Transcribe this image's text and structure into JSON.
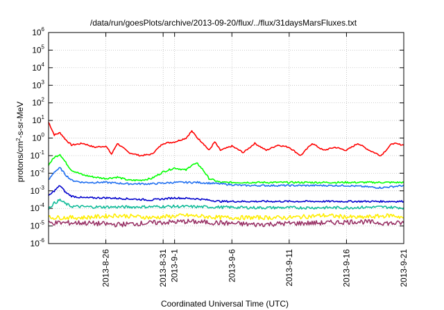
{
  "chart_data": {
    "type": "line",
    "title": "/data/run/goesPlots/archive/2013-09-20/flux/../flux/31daysMarsFluxes.txt",
    "xlabel": "Coordinated Universal Time (UTC)",
    "ylabel": {
      "base": "protons/cm",
      "sup": "2",
      "rest": "-s-sr-MeV"
    },
    "yscale": "log",
    "ylim": [
      1e-06,
      1000000.0
    ],
    "xlim": [
      "2013-08-21",
      "2013-09-21"
    ],
    "grid": true,
    "y_ticks": [
      {
        "value": 1e-06,
        "base": "10",
        "exp": "-6"
      },
      {
        "value": 1e-05,
        "base": "10",
        "exp": "-5"
      },
      {
        "value": 0.0001,
        "base": "10",
        "exp": "-4"
      },
      {
        "value": 0.001,
        "base": "10",
        "exp": "-3"
      },
      {
        "value": 0.01,
        "base": "10",
        "exp": "-2"
      },
      {
        "value": 0.1,
        "base": "10",
        "exp": "-1"
      },
      {
        "value": 1,
        "base": "10",
        "exp": "0"
      },
      {
        "value": 10.0,
        "base": "10",
        "exp": "1"
      },
      {
        "value": 100.0,
        "base": "10",
        "exp": "2"
      },
      {
        "value": 1000.0,
        "base": "10",
        "exp": "3"
      },
      {
        "value": 10000.0,
        "base": "10",
        "exp": "4"
      },
      {
        "value": 100000.0,
        "base": "10",
        "exp": "5"
      },
      {
        "value": 1000000.0,
        "base": "10",
        "exp": "6"
      }
    ],
    "x_ticks": [
      {
        "date": "2013-08-26",
        "label": "2013-8-26"
      },
      {
        "date": "2013-08-31",
        "label": "2013-8-31"
      },
      {
        "date": "2013-09-01",
        "label": "2013-9-1"
      },
      {
        "date": "2013-09-06",
        "label": "2013-9-6"
      },
      {
        "date": "2013-09-11",
        "label": "2013-9-11"
      },
      {
        "date": "2013-09-16",
        "label": "2013-9-16"
      },
      {
        "date": "2013-09-21",
        "label": "2013-9-21"
      }
    ],
    "series": [
      {
        "color": "#ff0000",
        "x": [
          "2013-08-21",
          "2013-08-21T12:00",
          "2013-08-22",
          "2013-08-22T12:00",
          "2013-08-23",
          "2013-08-24",
          "2013-08-25",
          "2013-08-26",
          "2013-08-26T12:00",
          "2013-08-27",
          "2013-08-28",
          "2013-08-29",
          "2013-08-30",
          "2013-08-31",
          "2013-09-01",
          "2013-09-02",
          "2013-09-02T12:00",
          "2013-09-03",
          "2013-09-03T12:00",
          "2013-09-04",
          "2013-09-04T12:00",
          "2013-09-05",
          "2013-09-06",
          "2013-09-07",
          "2013-09-08",
          "2013-09-09",
          "2013-09-10",
          "2013-09-11",
          "2013-09-12",
          "2013-09-13",
          "2013-09-14",
          "2013-09-15",
          "2013-09-16",
          "2013-09-17",
          "2013-09-18",
          "2013-09-19",
          "2013-09-20",
          "2013-09-21"
        ],
        "y": [
          8,
          1.5,
          2,
          0.8,
          0.4,
          0.5,
          0.3,
          0.35,
          0.12,
          0.5,
          0.15,
          0.1,
          0.12,
          0.5,
          0.6,
          1,
          2.5,
          1,
          0.5,
          0.2,
          0.6,
          0.2,
          0.35,
          0.15,
          0.5,
          0.2,
          0.4,
          0.3,
          0.1,
          0.5,
          0.2,
          0.3,
          0.2,
          0.5,
          0.2,
          0.1,
          0.5,
          0.4
        ]
      },
      {
        "color": "#00ff00",
        "x": [
          "2013-08-21",
          "2013-08-21T12:00",
          "2013-08-22",
          "2013-08-22T12:00",
          "2013-08-23",
          "2013-08-24",
          "2013-08-25",
          "2013-08-26",
          "2013-08-27",
          "2013-08-28",
          "2013-08-29",
          "2013-08-30",
          "2013-08-31",
          "2013-09-01",
          "2013-09-02",
          "2013-09-02T12:00",
          "2013-09-03",
          "2013-09-03T12:00",
          "2013-09-04",
          "2013-09-05",
          "2013-09-06",
          "2013-09-08",
          "2013-09-10",
          "2013-09-12",
          "2013-09-14",
          "2013-09-16",
          "2013-09-18",
          "2013-09-20",
          "2013-09-21"
        ],
        "y": [
          0.03,
          0.08,
          0.12,
          0.04,
          0.015,
          0.008,
          0.006,
          0.005,
          0.006,
          0.004,
          0.004,
          0.005,
          0.012,
          0.02,
          0.015,
          0.03,
          0.035,
          0.015,
          0.005,
          0.003,
          0.003,
          0.003,
          0.003,
          0.003,
          0.003,
          0.003,
          0.003,
          0.003,
          0.003
        ]
      },
      {
        "color": "#1e6ef0",
        "x": [
          "2013-08-21",
          "2013-08-21T12:00",
          "2013-08-22",
          "2013-08-22T12:00",
          "2013-08-23",
          "2013-08-24",
          "2013-08-25",
          "2013-08-26",
          "2013-08-28",
          "2013-08-30",
          "2013-09-01",
          "2013-09-03",
          "2013-09-05",
          "2013-09-07",
          "2013-09-10",
          "2013-09-13",
          "2013-09-16",
          "2013-09-19",
          "2013-09-21"
        ],
        "y": [
          0.004,
          0.012,
          0.02,
          0.008,
          0.004,
          0.003,
          0.003,
          0.003,
          0.0025,
          0.0025,
          0.003,
          0.003,
          0.0025,
          0.002,
          0.002,
          0.002,
          0.002,
          0.0015,
          0.002
        ]
      },
      {
        "color": "#0000cc",
        "x": [
          "2013-08-21",
          "2013-08-21T12:00",
          "2013-08-22",
          "2013-08-22T12:00",
          "2013-08-23",
          "2013-08-24",
          "2013-08-26",
          "2013-08-28",
          "2013-08-30",
          "2013-09-01",
          "2013-09-03",
          "2013-09-05",
          "2013-09-08",
          "2013-09-11",
          "2013-09-14",
          "2013-09-17",
          "2013-09-19",
          "2013-09-21"
        ],
        "y": [
          0.0005,
          0.001,
          0.002,
          0.0008,
          0.0005,
          0.0004,
          0.0004,
          0.00035,
          0.0003,
          0.0004,
          0.00035,
          0.00025,
          0.00025,
          0.00025,
          0.00025,
          0.00025,
          0.00025,
          0.00025
        ]
      },
      {
        "color": "#11bb99",
        "x": [
          "2013-08-21",
          "2013-08-21T12:00",
          "2013-08-22",
          "2013-08-22T12:00",
          "2013-08-23",
          "2013-08-25",
          "2013-08-28",
          "2013-09-01",
          "2013-09-04",
          "2013-09-08",
          "2013-09-12",
          "2013-09-16",
          "2013-09-19",
          "2013-09-21"
        ],
        "y": [
          0.0001,
          0.0002,
          0.0003,
          0.00018,
          0.00013,
          0.00012,
          0.00012,
          0.00013,
          0.00012,
          0.00011,
          0.00011,
          0.00011,
          0.00012,
          0.00011
        ]
      },
      {
        "color": "#ffee00",
        "x": [
          "2013-08-21",
          "2013-08-24",
          "2013-08-27",
          "2013-08-30",
          "2013-09-02",
          "2013-09-05",
          "2013-09-08",
          "2013-09-11",
          "2013-09-14",
          "2013-09-17",
          "2013-09-20",
          "2013-09-21"
        ],
        "y": [
          3e-05,
          3e-05,
          4e-05,
          3e-05,
          4e-05,
          3e-05,
          3e-05,
          3e-05,
          4e-05,
          3e-05,
          4e-05,
          3e-05
        ]
      },
      {
        "color": "#993366",
        "x": [
          "2013-08-21",
          "2013-08-24",
          "2013-08-27",
          "2013-08-30",
          "2013-09-02",
          "2013-09-05",
          "2013-09-08",
          "2013-09-11",
          "2013-09-14",
          "2013-09-17",
          "2013-09-20",
          "2013-09-21"
        ],
        "y": [
          1.5e-05,
          1.5e-05,
          1.2e-05,
          1.5e-05,
          1.8e-05,
          1.5e-05,
          1.2e-05,
          1.4e-05,
          1.5e-05,
          1.8e-05,
          1.4e-05,
          1.5e-05
        ]
      }
    ]
  }
}
